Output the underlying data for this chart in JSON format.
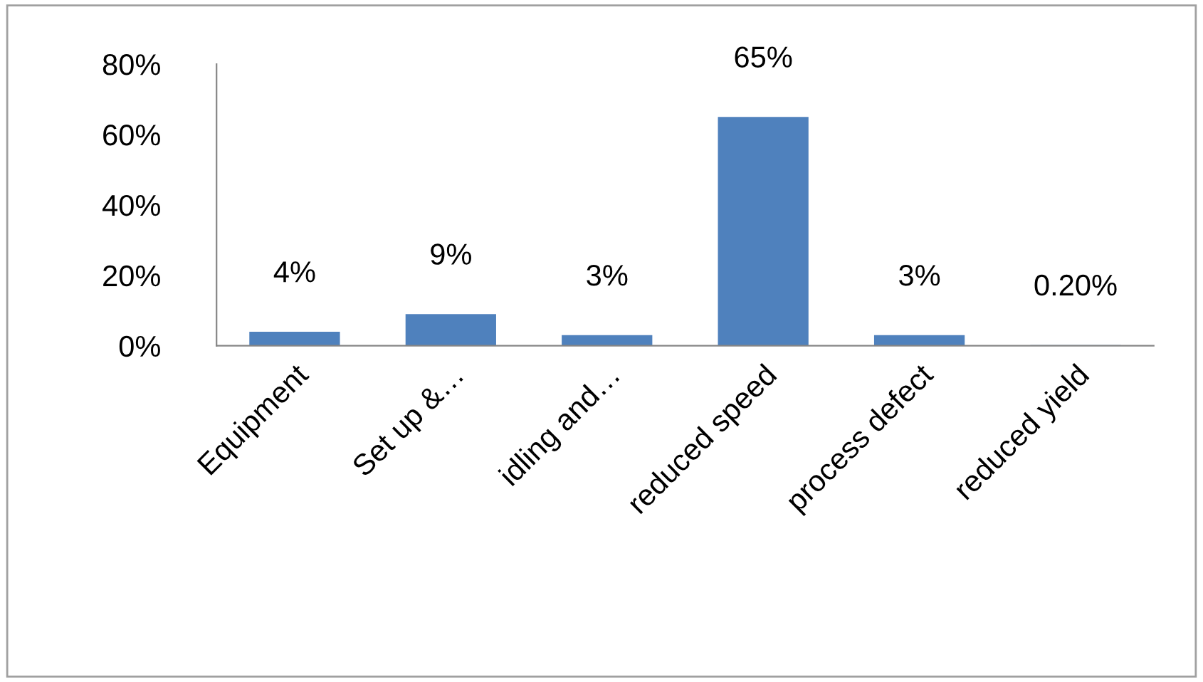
{
  "chart_data": {
    "type": "bar",
    "categories": [
      "Equipment",
      "Set up &…",
      "idling and…",
      "reduced speed",
      "process defect",
      "reduced yield"
    ],
    "values": [
      4,
      9,
      3,
      65,
      3,
      0.2
    ],
    "value_labels": [
      "4%",
      "9%",
      "3%",
      "65%",
      "3%",
      "0.20%"
    ],
    "color": "#4f81bd",
    "ylim": [
      0,
      80
    ],
    "yticks": [
      {
        "value": 0,
        "label": "0%"
      },
      {
        "value": 20,
        "label": "20%"
      },
      {
        "value": 40,
        "label": "40%"
      },
      {
        "value": 60,
        "label": "60%"
      },
      {
        "value": 80,
        "label": "80%"
      }
    ],
    "grid": false,
    "legend": false
  }
}
